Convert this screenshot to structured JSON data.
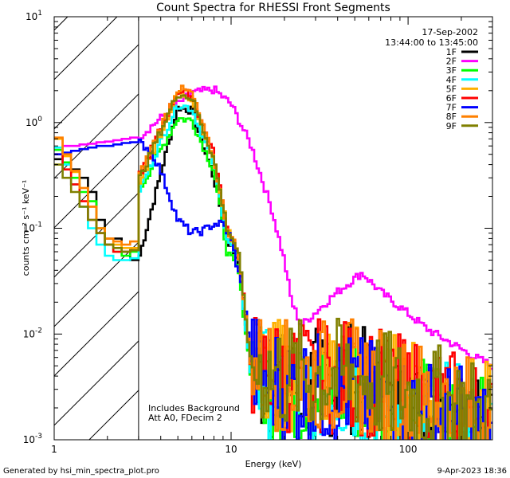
{
  "chart_data": {
    "type": "line",
    "title": "Count Spectra for RHESSI Front Segments",
    "xlabel": "Energy (keV)",
    "ylabel": "counts cm⁻² s⁻¹ keV⁻¹",
    "xscale": "log",
    "yscale": "log",
    "xlim": [
      1,
      300
    ],
    "ylim": [
      0.001,
      10
    ],
    "x_ticks": [
      {
        "value": 1,
        "label": "1"
      },
      {
        "value": 10,
        "label": "10"
      },
      {
        "value": 100,
        "label": "100"
      }
    ],
    "y_ticks": [
      {
        "value": 0.001,
        "base": "10",
        "exp": "-3"
      },
      {
        "value": 0.01,
        "base": "10",
        "exp": "-2"
      },
      {
        "value": 0.1,
        "base": "10",
        "exp": "-1"
      },
      {
        "value": 1,
        "base": "10",
        "exp": "0"
      },
      {
        "value": 10,
        "base": "10",
        "exp": "1"
      }
    ],
    "date": "17-Sep-2002",
    "time_range": "13:44:00 to 13:45:00",
    "annotations": [
      "Includes Background",
      "Att A0, FDecim 2"
    ],
    "excluded_region_max_kev": 3,
    "footer_left": "Generated by hsi_min_spectra_plot.pro",
    "footer_right": "9-Apr-2023 18:36",
    "legend_position": "top-right",
    "series": [
      {
        "name": "1F",
        "color": "#000000",
        "lo": [
          [
            3,
            0.05
          ],
          [
            5,
            1.4
          ],
          [
            6,
            1.3
          ],
          [
            8,
            0.3
          ],
          [
            9.5,
            0.08
          ],
          [
            11,
            0.05
          ],
          [
            13,
            0.004
          ],
          [
            20,
            0.003
          ],
          [
            50,
            0.004
          ],
          [
            80,
            0.002
          ],
          [
            200,
            0.0015
          ],
          [
            300,
            0.001
          ]
        ],
        "values": [
          0.45,
          0.5,
          0.36,
          0.3,
          0.22,
          0.12,
          0.08,
          0.08,
          0.06,
          0.05
        ]
      },
      {
        "name": "2F",
        "color": "#ff00ff",
        "lo": [
          [
            3,
            0.72
          ],
          [
            4.5,
            1.3
          ],
          [
            6,
            1.9
          ],
          [
            8,
            2.05
          ],
          [
            10,
            1.5
          ],
          [
            13,
            0.6
          ],
          [
            17,
            0.15
          ],
          [
            20,
            0.05
          ],
          [
            22,
            0.02
          ],
          [
            25,
            0.012
          ],
          [
            30,
            0.016
          ],
          [
            40,
            0.025
          ],
          [
            55,
            0.038
          ],
          [
            70,
            0.025
          ],
          [
            90,
            0.018
          ],
          [
            130,
            0.011
          ],
          [
            180,
            0.008
          ],
          [
            240,
            0.006
          ],
          [
            300,
            0.005
          ]
        ],
        "values": [
          0.55,
          0.6,
          0.6,
          0.62,
          0.63,
          0.65,
          0.66,
          0.68,
          0.7,
          0.72
        ]
      },
      {
        "name": "3F",
        "color": "#00ff00",
        "lo": [
          [
            3,
            0.22
          ],
          [
            5,
            1.1
          ],
          [
            6,
            1.05
          ],
          [
            8,
            0.35
          ],
          [
            9.5,
            0.06
          ],
          [
            11,
            0.04
          ],
          [
            13,
            0.004
          ],
          [
            20,
            0.003
          ],
          [
            50,
            0.003
          ],
          [
            80,
            0.002
          ],
          [
            200,
            0.0015
          ],
          [
            300,
            0.001
          ]
        ],
        "values": [
          0.55,
          0.42,
          0.3,
          0.22,
          0.18,
          0.1,
          0.07,
          0.06,
          0.055,
          0.06
        ]
      },
      {
        "name": "4F",
        "color": "#00ffff",
        "lo": [
          [
            3,
            0.22
          ],
          [
            5,
            1.5
          ],
          [
            6,
            1.35
          ],
          [
            8,
            0.4
          ],
          [
            9.5,
            0.08
          ],
          [
            11,
            0.05
          ],
          [
            13,
            0.004
          ],
          [
            20,
            0.003
          ],
          [
            50,
            0.003
          ],
          [
            80,
            0.002
          ],
          [
            200,
            0.0015
          ],
          [
            300,
            0.001
          ]
        ],
        "values": [
          0.58,
          0.4,
          0.26,
          0.16,
          0.1,
          0.07,
          0.055,
          0.05,
          0.05,
          0.052
        ]
      },
      {
        "name": "5F",
        "color": "#ffb000",
        "lo": [
          [
            3,
            0.25
          ],
          [
            5,
            1.9
          ],
          [
            6,
            1.7
          ],
          [
            8,
            0.45
          ],
          [
            9.5,
            0.1
          ],
          [
            11,
            0.06
          ],
          [
            13,
            0.005
          ],
          [
            20,
            0.004
          ],
          [
            50,
            0.004
          ],
          [
            80,
            0.003
          ],
          [
            200,
            0.002
          ],
          [
            300,
            0.0015
          ]
        ],
        "values": [
          0.7,
          0.48,
          0.34,
          0.24,
          0.16,
          0.1,
          0.08,
          0.07,
          0.065,
          0.065
        ]
      },
      {
        "name": "6F",
        "color": "#ff0000",
        "lo": [
          [
            3,
            0.3
          ],
          [
            5,
            2.0
          ],
          [
            6,
            1.8
          ],
          [
            8,
            0.5
          ],
          [
            9.5,
            0.1
          ],
          [
            11,
            0.06
          ],
          [
            13,
            0.005
          ],
          [
            20,
            0.004
          ],
          [
            50,
            0.004
          ],
          [
            80,
            0.003
          ],
          [
            200,
            0.002
          ],
          [
            300,
            0.0015
          ]
        ],
        "values": [
          0.5,
          0.36,
          0.26,
          0.18,
          0.12,
          0.09,
          0.07,
          0.06,
          0.06,
          0.062
        ]
      },
      {
        "name": "7F",
        "color": "#0000ff",
        "lo": [
          [
            3,
            0.65
          ],
          [
            3.5,
            0.55
          ],
          [
            4,
            0.35
          ],
          [
            4.5,
            0.2
          ],
          [
            5,
            0.12
          ],
          [
            6,
            0.09
          ],
          [
            7,
            0.095
          ],
          [
            8,
            0.11
          ],
          [
            9,
            0.11
          ],
          [
            10,
            0.08
          ],
          [
            12,
            0.02
          ],
          [
            13,
            0.005
          ],
          [
            20,
            0.003
          ],
          [
            50,
            0.003
          ],
          [
            80,
            0.002
          ],
          [
            200,
            0.0015
          ],
          [
            300,
            0.001
          ]
        ],
        "values": [
          0.5,
          0.52,
          0.54,
          0.56,
          0.58,
          0.6,
          0.6,
          0.62,
          0.64,
          0.65
        ]
      },
      {
        "name": "8F",
        "color": "#ff8000",
        "lo": [
          [
            3,
            0.3
          ],
          [
            5,
            2.1
          ],
          [
            6,
            1.9
          ],
          [
            8,
            0.45
          ],
          [
            9.5,
            0.1
          ],
          [
            11,
            0.06
          ],
          [
            13,
            0.005
          ],
          [
            20,
            0.004
          ],
          [
            50,
            0.004
          ],
          [
            80,
            0.003
          ],
          [
            200,
            0.002
          ],
          [
            300,
            0.0015
          ]
        ],
        "values": [
          0.72,
          0.5,
          0.35,
          0.24,
          0.16,
          0.1,
          0.08,
          0.075,
          0.07,
          0.075
        ]
      },
      {
        "name": "9F",
        "color": "#808000",
        "lo": [
          [
            3,
            0.28
          ],
          [
            5,
            1.9
          ],
          [
            6,
            1.7
          ],
          [
            8,
            0.45
          ],
          [
            9.5,
            0.1
          ],
          [
            11,
            0.06
          ],
          [
            13,
            0.005
          ],
          [
            20,
            0.004
          ],
          [
            50,
            0.004
          ],
          [
            80,
            0.003
          ],
          [
            200,
            0.002
          ],
          [
            300,
            0.0015
          ]
        ],
        "values": [
          0.4,
          0.3,
          0.22,
          0.16,
          0.12,
          0.09,
          0.07,
          0.065,
          0.06,
          0.062
        ]
      }
    ]
  }
}
